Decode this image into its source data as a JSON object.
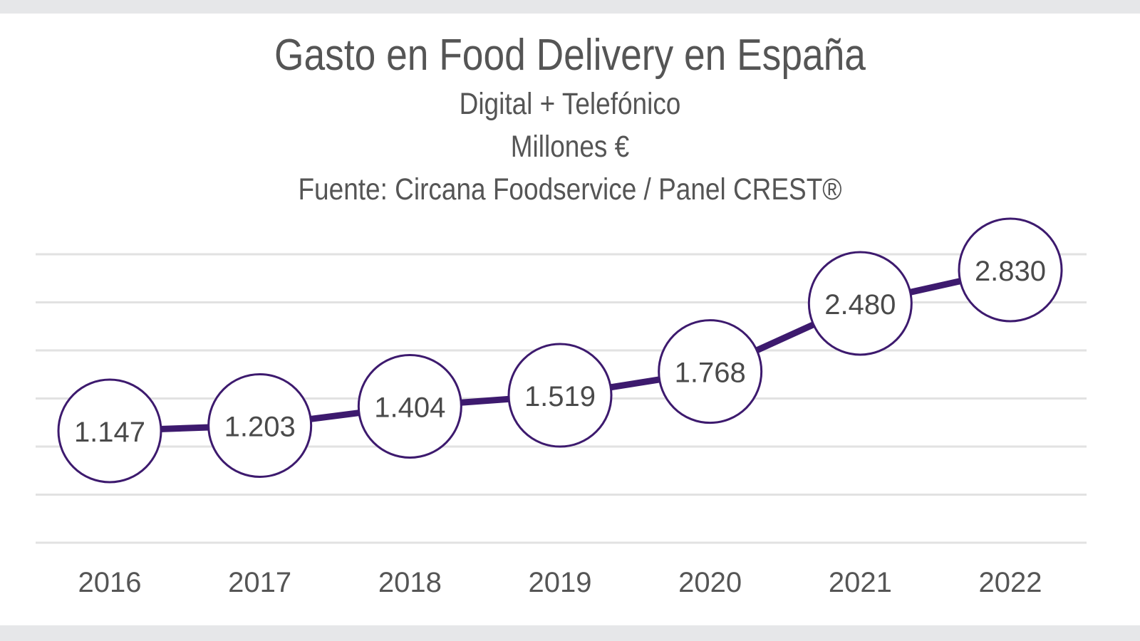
{
  "chart_data": {
    "type": "line",
    "title": "Gasto en Food Delivery en España",
    "subtitles": [
      "Digital + Telefónico",
      "Millones €",
      "Fuente: Circana Foodservice / Panel CREST®"
    ],
    "xlabel": "",
    "ylabel": "Millones €",
    "categories": [
      "2016",
      "2017",
      "2018",
      "2019",
      "2020",
      "2021",
      "2022"
    ],
    "series": [
      {
        "name": "Gasto en Food Delivery",
        "values": [
          1147,
          1203,
          1404,
          1519,
          1768,
          2480,
          2830
        ],
        "labels": [
          "1.147",
          "1.203",
          "1.404",
          "1.519",
          "1.768",
          "2.480",
          "2.830"
        ],
        "color": "#3d1a6e"
      }
    ],
    "grid": true,
    "gridline_count": 7,
    "y_axis_labels_visible": false,
    "legend": "none"
  }
}
